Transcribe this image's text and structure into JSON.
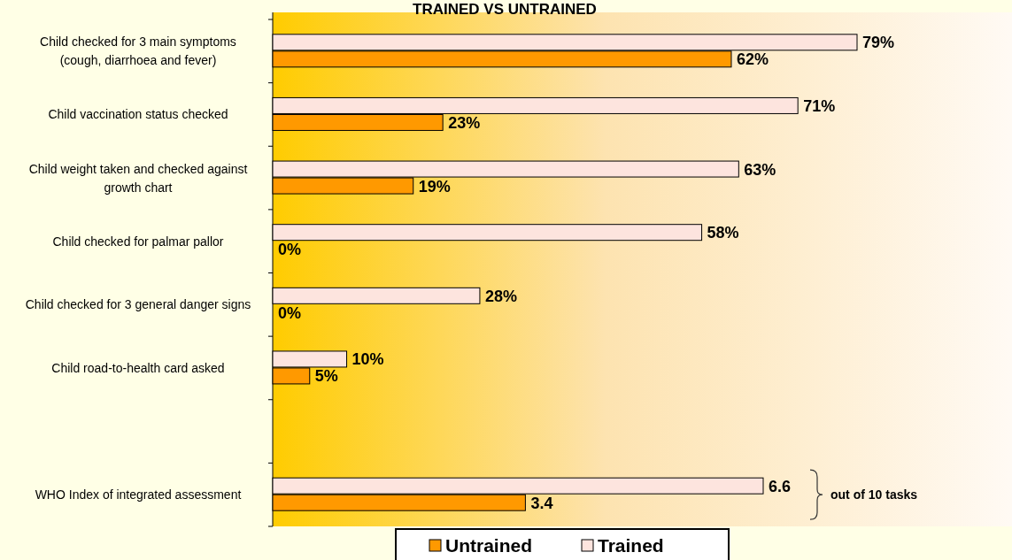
{
  "chart_data": [
    {
      "type": "bar",
      "orientation": "horizontal",
      "title": "TRAINED VS UNTRAINED",
      "categories": [
        "Child checked for 3 main symptoms (cough, diarrhoea and fever)",
        "Child vaccination status checked",
        "Child weight taken and checked against growth chart",
        "Child checked for palmar pallor",
        "Child checked for 3 general danger signs",
        "Child road-to-health card asked"
      ],
      "series": [
        {
          "color": "#fde4de",
          "values": [
            79,
            71,
            63,
            58,
            28,
            10
          ],
          "value_labels": [
            "79%",
            "71%",
            "63%",
            "58%",
            "28%",
            "10%"
          ]
        },
        {
          "color": "#ff9900",
          "values": [
            62,
            23,
            19,
            0,
            0,
            5
          ],
          "value_labels": [
            "62%",
            "23%",
            "19%",
            "0%",
            "0%",
            "5%"
          ]
        }
      ],
      "tick_labels": "y"
    },
    {
      "type": "bar",
      "orientation": "horizontal",
      "categories": [
        "WHO Index of integrated assessment"
      ],
      "series": [
        {
          "name": "Trained",
          "color": "#fde4de",
          "values": [
            6.6
          ]
        },
        {
          "name": "Untrained",
          "color": "#ff9900",
          "values": [
            3.4
          ]
        }
      ],
      "data_labels": true,
      "annotations": [
        "out of 10 tasks"
      ],
      "legend": "bottom",
      "tick_labels": "y"
    }
  ]
}
